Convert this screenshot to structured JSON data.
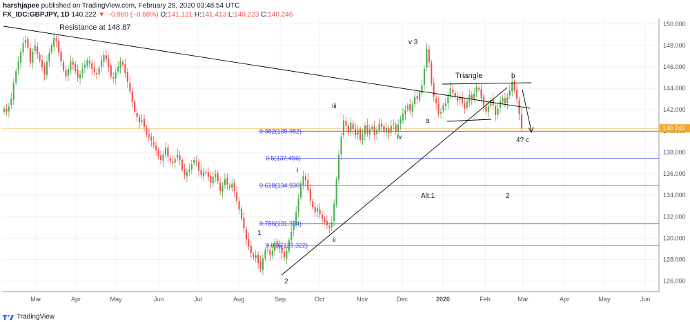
{
  "header": {
    "publisher": "harshjapee",
    "published_text": " published on TradingView.com, February 28, 2020 03:48:54 UTC",
    "symbol": "FX_IDC:GBPJPY, 1D",
    "last": "140.222",
    "change": "▼ −0.960 (−0.68%)",
    "open_label": "O:",
    "open": "141.121",
    "high_label": "H:",
    "high": "141.413",
    "low_label": "L:",
    "low": "140.223",
    "close_label": "C:",
    "close": "140.246"
  },
  "footer": {
    "brand": "TradingView"
  },
  "colors": {
    "up": "#26a69a",
    "up_candle": "#4caf50",
    "down": "#ef5350",
    "fib": "#3a3aff",
    "trend": "#000000",
    "price_line": "#f5a623",
    "grid": "#eef0f3",
    "price_tag_bg": "#f5a623"
  },
  "chart_data": {
    "type": "candlestick",
    "title": "",
    "xlabel": "",
    "ylabel": "",
    "ylim": [
      125,
      150.5
    ],
    "y_ticks": [
      "126.000",
      "128.000",
      "130.000",
      "132.000",
      "134.000",
      "136.000",
      "138.000",
      "140.000",
      "142.000",
      "144.000",
      "146.000",
      "148.000",
      "150.000"
    ],
    "x_ticks": [
      "Mar",
      "Apr",
      "May",
      "Jun",
      "Jul",
      "Aug",
      "Sep",
      "Oct",
      "Nov",
      "Dec",
      "2020",
      "Feb",
      "Mar",
      "Apr",
      "May",
      "Jun"
    ],
    "last_price": "140.246",
    "close_series": [
      142.1,
      141.8,
      142.3,
      143.0,
      144.5,
      145.6,
      146.5,
      147.4,
      148.2,
      148.5,
      147.8,
      146.4,
      147.4,
      148.0,
      147.2,
      146.6,
      146.0,
      145.3,
      146.5,
      147.3,
      148.0,
      148.7,
      148.4,
      147.3,
      146.5,
      145.7,
      145.1,
      145.8,
      146.5,
      146.2,
      145.6,
      145.0,
      145.3,
      145.8,
      146.2,
      146.6,
      146.3,
      145.8,
      145.5,
      145.3,
      145.9,
      146.6,
      147.1,
      146.7,
      146.0,
      145.1,
      144.9,
      145.5,
      146.0,
      146.5,
      146.2,
      145.4,
      144.6,
      143.7,
      142.7,
      141.8,
      141.3,
      140.8,
      141.0,
      140.4,
      139.7,
      139.4,
      139.1,
      138.7,
      138.2,
      137.6,
      137.3,
      137.8,
      138.4,
      137.6,
      137.2,
      137.0,
      137.4,
      137.8,
      137.3,
      136.4,
      135.9,
      136.2,
      136.4,
      136.9,
      137.3,
      137.1,
      136.3,
      135.9,
      136.2,
      136.1,
      135.7,
      135.2,
      135.7,
      136.0,
      135.3,
      134.4,
      134.9,
      135.5,
      135.0,
      134.7,
      135.1,
      134.4,
      133.5,
      132.7,
      131.8,
      130.9,
      129.9,
      129.2,
      128.6,
      128.2,
      128.4,
      127.7,
      127.1,
      128.1,
      128.9,
      129.0,
      128.4,
      128.8,
      129.6,
      129.1,
      129.3,
      128.6,
      128.2,
      128.8,
      129.8,
      130.6,
      131.4,
      132.4,
      133.7,
      135.1,
      135.8,
      135.4,
      134.5,
      133.5,
      132.9,
      132.4,
      132.8,
      132.2,
      131.8,
      131.5,
      131.2,
      131.0,
      131.5,
      133.2,
      135.5,
      137.8,
      139.5,
      141.0,
      140.5,
      139.8,
      140.8,
      140.2,
      139.6,
      140.1,
      139.2,
      139.7,
      140.5,
      139.8,
      140.2,
      140.4,
      139.6,
      140.1,
      140.7,
      140.4,
      140.0,
      140.3,
      139.8,
      140.5,
      140.7,
      139.9,
      140.6,
      141.1,
      141.6,
      142.0,
      142.4,
      141.9,
      142.5,
      143.2,
      143.0,
      143.6,
      144.3,
      145.8,
      147.7,
      146.4,
      144.4,
      143.2,
      142.6,
      141.6,
      141.8,
      142.4,
      142.6,
      143.2,
      144.0,
      143.6,
      143.2,
      142.8,
      143.2,
      142.6,
      142.1,
      142.8,
      143.4,
      143.0,
      143.5,
      144.1,
      143.9,
      143.1,
      142.4,
      141.8,
      142.3,
      142.9,
      142.4,
      141.5,
      142.1,
      142.8,
      143.1,
      142.6,
      143.2,
      143.8,
      144.6,
      143.8,
      143.0,
      141.6,
      140.25
    ],
    "series": [
      {
        "name": "",
        "values": "close_series"
      }
    ],
    "fib_levels": [
      {
        "ratio": "0.382",
        "price": 139.982,
        "label": "0.382(139.982)"
      },
      {
        "ratio": "0.5",
        "price": 137.456,
        "label": "0.5(137.456)"
      },
      {
        "ratio": "0.618",
        "price": 134.93,
        "label": "0.618(134.930)"
      },
      {
        "ratio": "0.786",
        "price": 131.334,
        "label": "0.786(131.334)"
      },
      {
        "ratio": "0.886",
        "price": 129.322,
        "label": "0.886(129.322)"
      }
    ],
    "annotations": [
      {
        "text": "Resistance at 148.87"
      },
      {
        "text": "v 3"
      },
      {
        "text": "Triangle"
      },
      {
        "text": "b"
      },
      {
        "text": "iii"
      },
      {
        "text": "a"
      },
      {
        "text": "iv"
      },
      {
        "text": "4? c"
      },
      {
        "text": "i"
      },
      {
        "text": "Alt:1"
      },
      {
        "text": "2"
      },
      {
        "text": "1"
      },
      {
        "text": "ii"
      },
      {
        "text": "2"
      }
    ]
  }
}
